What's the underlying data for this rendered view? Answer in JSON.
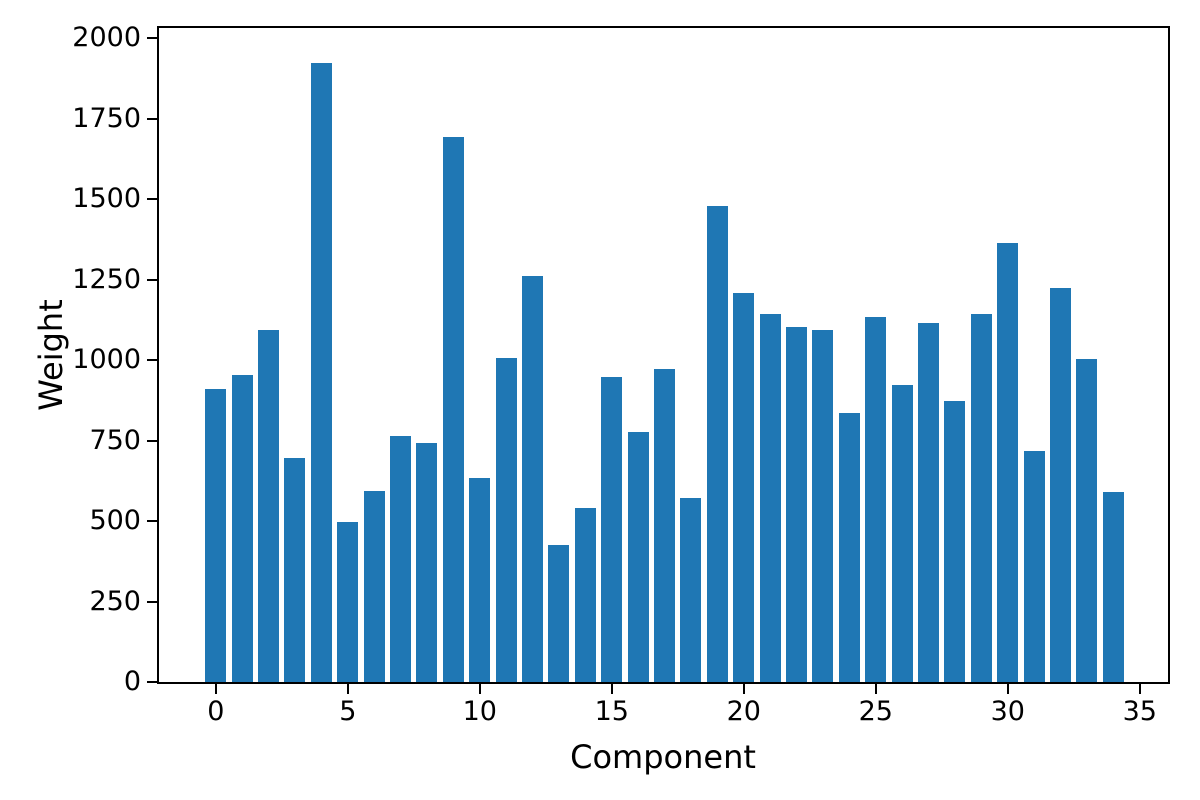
{
  "figure": {
    "background": "#ffffff",
    "text_color": "#000000"
  },
  "chart_data": {
    "type": "bar",
    "title": "",
    "xlabel": "Component",
    "ylabel": "Weight",
    "x": [
      0,
      1,
      2,
      3,
      4,
      5,
      6,
      7,
      8,
      9,
      10,
      11,
      12,
      13,
      14,
      15,
      16,
      17,
      18,
      19,
      20,
      21,
      22,
      23,
      24,
      25,
      26,
      27,
      28,
      29,
      30,
      31,
      32,
      33,
      34
    ],
    "values": [
      909,
      954,
      1095,
      697,
      1922,
      498,
      593,
      763,
      742,
      1693,
      634,
      1008,
      1262,
      425,
      540,
      948,
      776,
      972,
      572,
      1480,
      1210,
      1143,
      1103,
      1094,
      835,
      1133,
      922,
      1116,
      873,
      1143,
      1363,
      717,
      1225,
      1005,
      591
    ],
    "bar_color": "#1f77b4",
    "bar_width": 0.8,
    "xlim": [
      -2.15,
      36.07
    ],
    "ylim": [
      0,
      2032
    ],
    "xticks": [
      0,
      5,
      10,
      15,
      20,
      25,
      30,
      35
    ],
    "yticks": [
      0,
      250,
      500,
      750,
      1000,
      1250,
      1500,
      1750,
      2000
    ],
    "grid": false,
    "legend": null
  }
}
